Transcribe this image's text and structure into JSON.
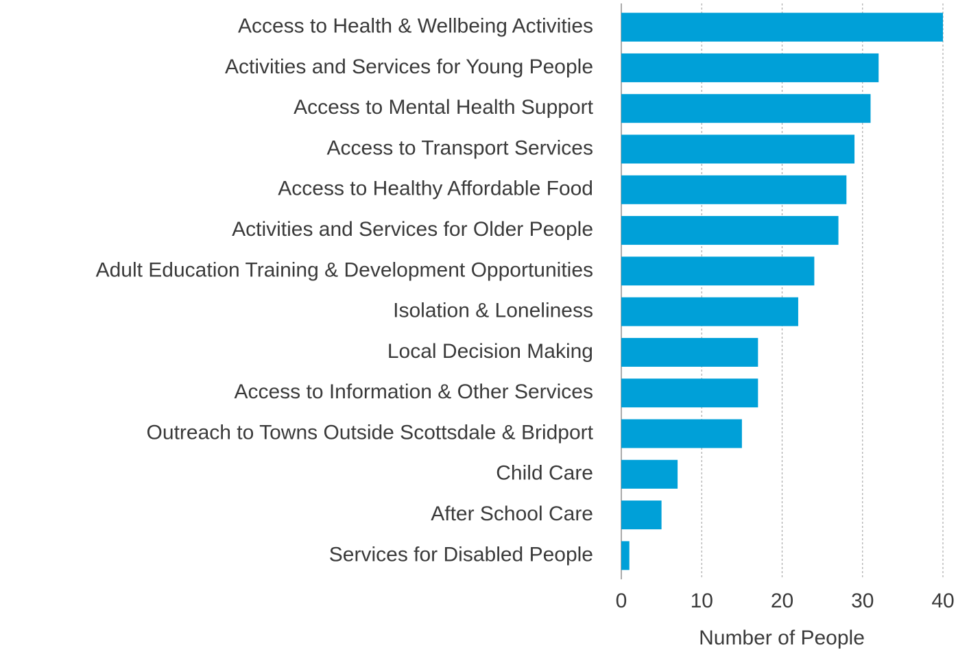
{
  "chart_data": {
    "type": "barh",
    "categories": [
      "Access to Health & Wellbeing Activities",
      "Activities and Services for Young People",
      "Access to Mental Health Support",
      "Access to Transport Services",
      "Access to Healthy Affordable Food",
      "Activities and Services for Older People",
      "Adult Education Training & Development Opportunities",
      "Isolation & Loneliness",
      "Local Decision Making",
      "Access to Information & Other Services",
      "Outreach to Towns Outside Scottsdale & Bridport",
      "Child Care",
      "After School Care",
      "Services for Disabled People"
    ],
    "values": [
      40,
      32,
      31,
      29,
      28,
      27,
      24,
      22,
      17,
      17,
      15,
      7,
      5,
      1
    ],
    "color": "#00a0d8",
    "xlabel": "Number of People",
    "xlim": [
      0,
      40
    ],
    "xticks": [
      0,
      10,
      20,
      30,
      40
    ],
    "grid": true
  }
}
